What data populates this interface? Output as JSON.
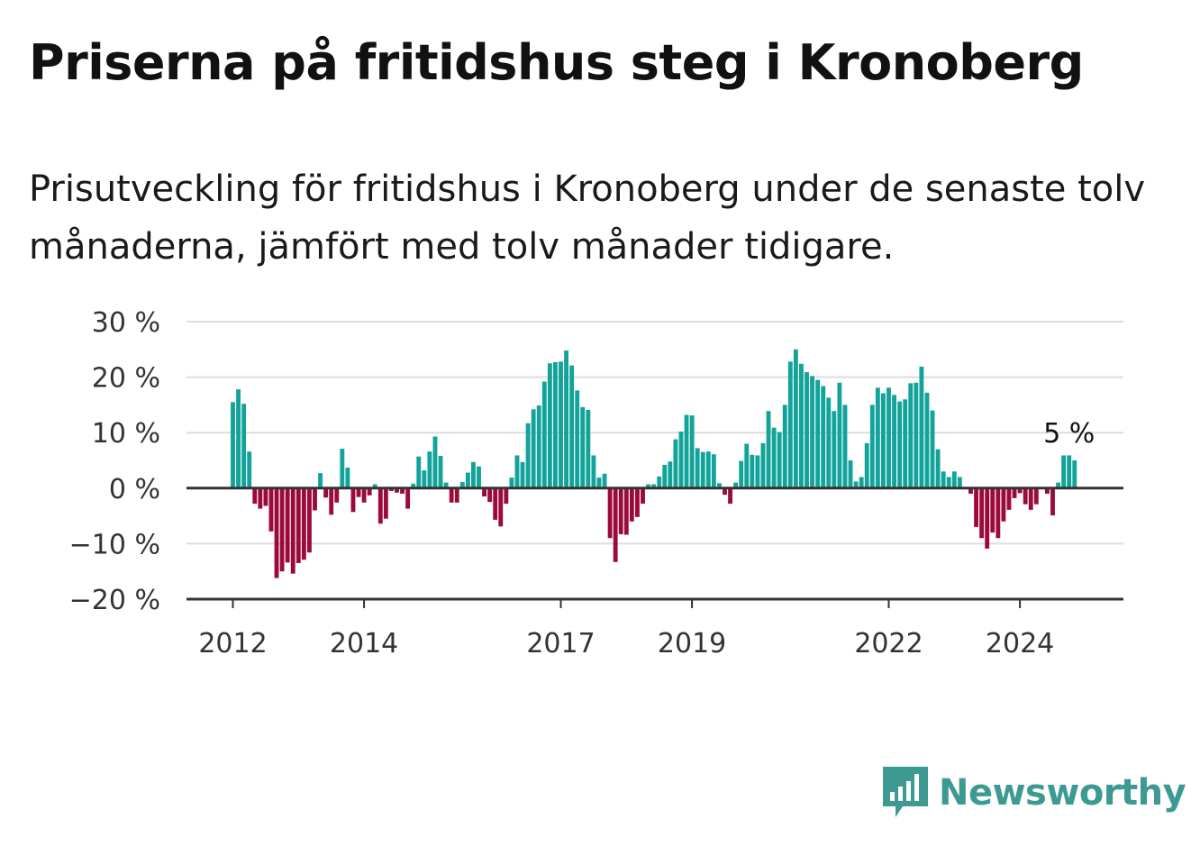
{
  "title": "Priserna på fritidshus steg i Kronoberg",
  "subtitle": "Prisutveckling för fritidshus i Kronoberg under de senaste tolv månaderna, jämfört med tolv månader tidigare.",
  "brand": {
    "name": "Newsworthy",
    "logo_icon": "newsworthy-logo-icon"
  },
  "colors": {
    "positive": "#12a39a",
    "negative": "#9c0a3c",
    "grid": "#dddddd",
    "axis": "#333333",
    "brand": "#3d9a92"
  },
  "chart_data": {
    "type": "bar",
    "title": "Priserna på fritidshus steg i Kronoberg",
    "xlabel": "",
    "ylabel": "",
    "ylim": [
      -20,
      30
    ],
    "y_ticks": [
      30,
      20,
      10,
      0,
      -10,
      -20
    ],
    "y_tick_labels": [
      "30 %",
      "20 %",
      "10 %",
      "0 %",
      "−10 %",
      "−20 %"
    ],
    "x_ticks": [
      2012,
      2014,
      2017,
      2019,
      2022,
      2024
    ],
    "x_tick_labels": [
      "2012",
      "2014",
      "2017",
      "2019",
      "2022",
      "2024"
    ],
    "grid": true,
    "start": "2012-01",
    "frequency": "monthly",
    "end_label": "5 %",
    "values": [
      15.5,
      17.8,
      15.2,
      6.6,
      -2.8,
      -3.7,
      -3.2,
      -7.8,
      -16.2,
      -15.0,
      -13.4,
      -15.4,
      -13.5,
      -12.9,
      -11.6,
      -4.0,
      2.7,
      -1.7,
      -4.8,
      -2.6,
      7.1,
      3.7,
      -4.3,
      -1.6,
      -2.6,
      -1.3,
      0.7,
      -6.4,
      -5.5,
      -0.5,
      -0.8,
      -1.0,
      -3.7,
      0.8,
      5.7,
      3.2,
      6.6,
      9.3,
      5.8,
      1.0,
      -2.6,
      -2.6,
      1.1,
      2.8,
      4.7,
      3.9,
      -1.5,
      -2.5,
      -5.7,
      -6.9,
      -2.8,
      1.9,
      5.9,
      4.7,
      11.7,
      14.2,
      14.9,
      19.2,
      22.5,
      22.7,
      22.8,
      24.8,
      22.1,
      17.6,
      14.6,
      14.1,
      5.9,
      1.9,
      2.6,
      -9.0,
      -13.3,
      -8.3,
      -8.4,
      -6.0,
      -5.2,
      -2.8,
      0.7,
      0.7,
      2.1,
      4.2,
      4.8,
      8.8,
      10.2,
      13.2,
      13.1,
      7.2,
      6.5,
      6.6,
      6.1,
      0.9,
      -1.2,
      -2.8,
      1.0,
      4.9,
      8.0,
      6.0,
      5.9,
      8.1,
      13.9,
      10.9,
      10.1,
      15.0,
      22.8,
      25.0,
      22.4,
      20.9,
      20.2,
      19.5,
      18.4,
      16.3,
      13.9,
      19.0,
      15.0,
      5.0,
      1.2,
      2.0,
      8.1,
      15.0,
      18.1,
      17.1,
      18.1,
      16.8,
      15.6,
      16.0,
      18.9,
      19.0,
      21.9,
      17.2,
      14.0,
      7.0,
      3.0,
      2.0,
      3.0,
      2.0,
      0.0,
      -1.0,
      -7.0,
      -9.0,
      -10.9,
      -8.0,
      -9.0,
      -6.0,
      -3.9,
      -1.8,
      -0.9,
      -2.9,
      -3.9,
      -2.9,
      0.0,
      -1.0,
      -4.9,
      1.0,
      5.9,
      5.9,
      5.0
    ]
  }
}
